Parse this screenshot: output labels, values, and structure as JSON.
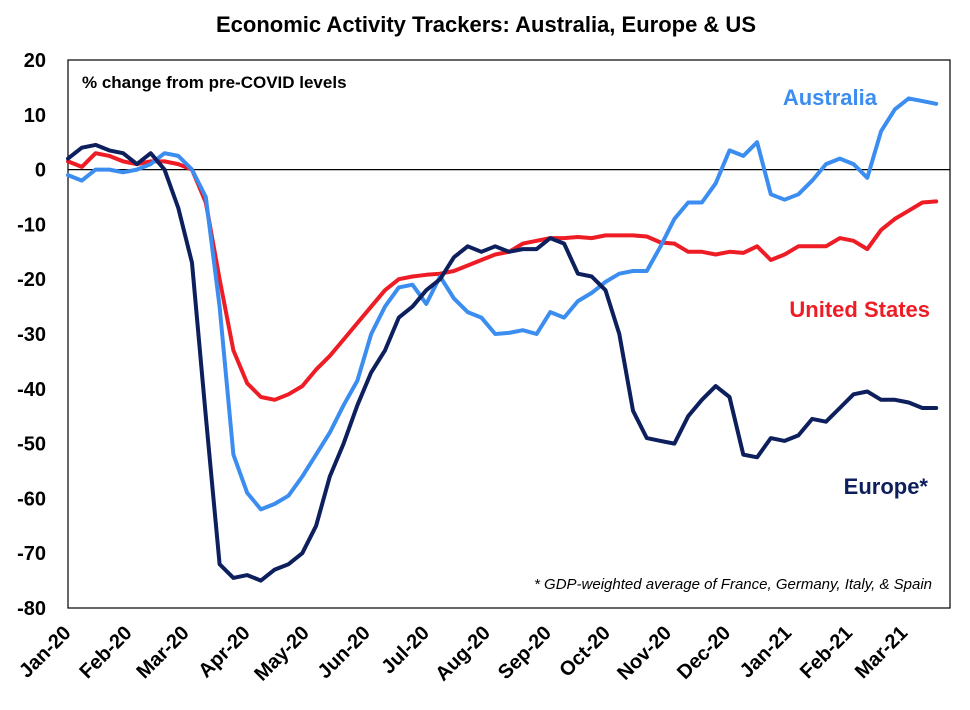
{
  "chart_data": {
    "type": "line",
    "title": "Economic Activity Trackers: Australia, Europe & US",
    "subtitle": "% change from pre-COVID levels",
    "footnote": "* GDP-weighted average of France, Germany, Italy, & Spain",
    "ylim": [
      -80,
      20
    ],
    "yticks": [
      20,
      10,
      0,
      -10,
      -20,
      -30,
      -40,
      -50,
      -60,
      -70,
      -80
    ],
    "xlim": [
      0,
      64
    ],
    "xtick_labels": [
      "Jan-20",
      "Feb-20",
      "Mar-20",
      "Apr-20",
      "May-20",
      "Jun-20",
      "Jul-20",
      "Aug-20",
      "Sep-20",
      "Oct-20",
      "Nov-20",
      "Dec-20",
      "Jan-21",
      "Feb-21",
      "Mar-21"
    ],
    "xtick_positions": [
      0,
      4.43,
      8.57,
      13,
      17.29,
      21.71,
      26,
      30.43,
      34.86,
      39.14,
      43.57,
      47.86,
      52.29,
      56.71,
      60.71
    ],
    "zero_line": true,
    "series": [
      {
        "name": "Australia",
        "color": "#3C8DF0",
        "x": [
          0,
          1,
          2,
          3,
          4,
          5,
          6,
          7,
          8,
          9,
          10,
          11,
          12,
          13,
          14,
          15,
          16,
          17,
          18,
          19,
          20,
          21,
          22,
          23,
          24,
          25,
          26,
          27,
          28,
          29,
          30,
          31,
          32,
          33,
          34,
          35,
          36,
          37,
          38,
          39,
          40,
          41,
          42,
          43,
          44,
          45,
          46,
          47,
          48,
          49,
          50,
          51,
          52,
          53,
          54,
          55,
          56,
          57,
          58,
          59,
          60,
          61,
          62,
          63
        ],
        "values": [
          -1,
          -2,
          0,
          0,
          -0.5,
          0,
          1,
          3,
          2.5,
          0,
          -5,
          -25,
          -52,
          -59,
          -62,
          -61,
          -59.5,
          -56,
          -52,
          -48,
          -43,
          -38.5,
          -30,
          -25,
          -21.5,
          -21,
          -24.5,
          -19.5,
          -23.5,
          -26,
          -27,
          -30,
          -29.8,
          -29.3,
          -30,
          -26,
          -27,
          -24,
          -22.5,
          -20.5,
          -19,
          -18.5,
          -18.5,
          -14,
          -9,
          -6,
          -6,
          -2.5,
          3.5,
          2.5,
          5,
          -4.5,
          -5.5,
          -4.5,
          -2,
          1,
          2,
          1,
          -1.5,
          7,
          11,
          13,
          12.5,
          12
        ]
      },
      {
        "name": "United States",
        "color": "#EE1C25",
        "x": [
          0,
          1,
          2,
          3,
          4,
          5,
          6,
          7,
          8,
          9,
          10,
          11,
          12,
          13,
          14,
          15,
          16,
          17,
          18,
          19,
          20,
          21,
          22,
          23,
          24,
          25,
          26,
          27,
          28,
          29,
          30,
          31,
          32,
          33,
          34,
          35,
          36,
          37,
          38,
          39,
          40,
          41,
          42,
          43,
          44,
          45,
          46,
          47,
          48,
          49,
          50,
          51,
          52,
          53,
          54,
          55,
          56,
          57,
          58,
          59,
          60,
          61,
          62,
          63
        ],
        "values": [
          1.5,
          0.5,
          3,
          2.5,
          1.5,
          1,
          1.5,
          1.5,
          1,
          0,
          -6,
          -20,
          -33,
          -39,
          -41.5,
          -42,
          -41,
          -39.5,
          -36.5,
          -34,
          -31,
          -28,
          -25,
          -22,
          -20,
          -19.5,
          -19.2,
          -19,
          -18.5,
          -17.5,
          -16.5,
          -15.5,
          -15,
          -13.5,
          -13,
          -12.5,
          -12.5,
          -12.3,
          -12.5,
          -12,
          -12,
          -12,
          -12.2,
          -13.3,
          -13.5,
          -15,
          -15,
          -15.5,
          -15,
          -15.2,
          -14,
          -16.5,
          -15.5,
          -14,
          -14,
          -14,
          -12.5,
          -13,
          -14.5,
          -11,
          -9,
          -7.5,
          -6,
          -5.8
        ]
      },
      {
        "name": "Europe*",
        "color": "#0D1F5C",
        "x": [
          0,
          1,
          2,
          3,
          4,
          5,
          6,
          7,
          8,
          9,
          10,
          11,
          12,
          13,
          14,
          15,
          16,
          17,
          18,
          19,
          20,
          21,
          22,
          23,
          24,
          25,
          26,
          27,
          28,
          29,
          30,
          31,
          32,
          33,
          34,
          35,
          36,
          37,
          38,
          39,
          40,
          41,
          42,
          43,
          44,
          45,
          46,
          47,
          48,
          49,
          50,
          51,
          52,
          53,
          54,
          55,
          56,
          57,
          58,
          59,
          60,
          61,
          62,
          63
        ],
        "values": [
          2,
          4,
          4.5,
          3.5,
          3,
          1,
          3,
          0,
          -7,
          -17,
          -45,
          -72,
          -74.5,
          -74,
          -75,
          -73,
          -72,
          -70,
          -65,
          -56,
          -50,
          -43,
          -37,
          -33,
          -27,
          -25,
          -22,
          -20,
          -16,
          -14,
          -15,
          -14,
          -15,
          -14.5,
          -14.5,
          -12.5,
          -13.5,
          -19,
          -19.5,
          -22,
          -30,
          -44,
          -49,
          -49.5,
          -50,
          -45,
          -42,
          -39.5,
          -41.5,
          -52,
          -52.5,
          -49,
          -49.5,
          -48.5,
          -45.5,
          -46,
          -43.5,
          -41,
          -40.5,
          -42,
          -42,
          -42.5,
          -43.5,
          -43.5
        ]
      }
    ],
    "series_labels": [
      "Australia",
      "United States",
      "Europe*"
    ]
  }
}
